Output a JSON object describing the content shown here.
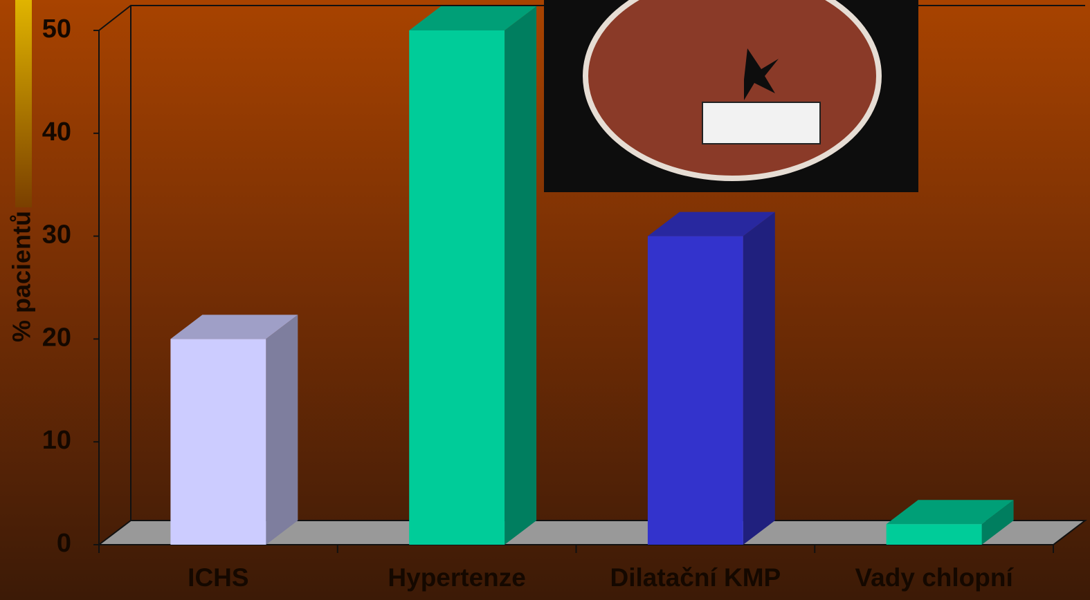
{
  "chart_data": {
    "type": "bar3d",
    "y_label": "% pacientů",
    "categories": [
      "ICHS",
      "Hypertenze",
      "Dilatační KMP",
      "Vady chlopní"
    ],
    "values": [
      20,
      50,
      30,
      2
    ],
    "colors": [
      "#ccccff",
      "#00cc99",
      "#3333cc",
      "#00cc99"
    ],
    "ylim": [
      0,
      50
    ],
    "yticks": [
      0,
      10,
      20,
      30,
      40,
      50
    ],
    "grid": false
  }
}
